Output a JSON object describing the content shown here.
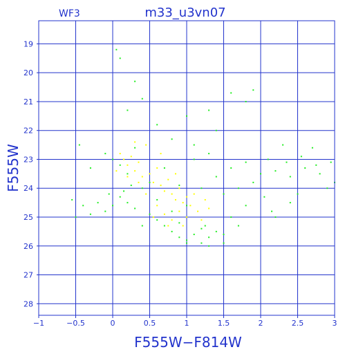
{
  "chart_data": {
    "type": "scatter",
    "title": "m33_u3vn07",
    "subtitle": "WF3",
    "xlabel": "F555W−F814W",
    "ylabel": "F555W",
    "xlim": [
      -1,
      3
    ],
    "ylim": [
      28.4,
      18.2
    ],
    "y_inverted": true,
    "x_ticks": [
      -1,
      -0.5,
      0,
      0.5,
      1,
      1.5,
      2,
      2.5,
      3
    ],
    "x_tick_labels": [
      "−1",
      "−0.5",
      "0",
      "0.5",
      "1",
      "1.5",
      "2",
      "2.5",
      "3"
    ],
    "y_ticks": [
      19,
      20,
      21,
      22,
      23,
      24,
      25,
      26,
      27,
      28
    ],
    "y_tick_labels": [
      "19",
      "20",
      "21",
      "22",
      "23",
      "24",
      "25",
      "26",
      "27",
      "28"
    ],
    "grid": true,
    "colors": {
      "axes": "#2233cc",
      "grid": "#2233cc",
      "green_series": "#22ee22",
      "yellow_series": "#ffff00"
    },
    "series": [
      {
        "color": "#22ee22",
        "points": [
          [
            0.9,
            25.2
          ],
          [
            1.1,
            25.6
          ],
          [
            1.2,
            25.4
          ],
          [
            0.8,
            25.5
          ],
          [
            1.0,
            25.8
          ],
          [
            1.3,
            25.7
          ],
          [
            1.4,
            25.5
          ],
          [
            0.7,
            25.3
          ],
          [
            0.6,
            25.1
          ],
          [
            0.5,
            24.9
          ],
          [
            0.3,
            24.7
          ],
          [
            0.2,
            24.5
          ],
          [
            0.1,
            24.3
          ],
          [
            0.0,
            24.6
          ],
          [
            -0.1,
            24.8
          ],
          [
            -0.2,
            24.5
          ],
          [
            -0.3,
            24.9
          ],
          [
            -0.4,
            24.6
          ],
          [
            0.2,
            23.5
          ],
          [
            0.1,
            23.2
          ],
          [
            0.0,
            23.0
          ],
          [
            -0.1,
            22.8
          ],
          [
            0.3,
            22.6
          ],
          [
            0.5,
            23.8
          ],
          [
            1.5,
            24.2
          ],
          [
            1.7,
            24.0
          ],
          [
            1.9,
            23.8
          ],
          [
            2.0,
            23.5
          ],
          [
            2.2,
            23.4
          ],
          [
            2.4,
            23.6
          ],
          [
            2.6,
            23.3
          ],
          [
            2.8,
            23.5
          ],
          [
            2.9,
            24.0
          ],
          [
            1.8,
            24.6
          ],
          [
            1.6,
            25.0
          ],
          [
            1.3,
            26.0
          ],
          [
            1.2,
            25.9
          ],
          [
            1.0,
            25.9
          ],
          [
            0.9,
            25.7
          ],
          [
            0.4,
            25.3
          ],
          [
            0.05,
            19.2
          ],
          [
            0.1,
            19.5
          ],
          [
            0.3,
            20.3
          ],
          [
            0.4,
            20.9
          ],
          [
            0.2,
            21.3
          ],
          [
            0.6,
            21.8
          ],
          [
            1.0,
            21.5
          ],
          [
            1.3,
            21.3
          ],
          [
            1.6,
            20.7
          ],
          [
            1.8,
            21.0
          ],
          [
            1.9,
            20.6
          ],
          [
            1.4,
            22.0
          ],
          [
            0.8,
            22.3
          ],
          [
            1.1,
            22.5
          ],
          [
            2.3,
            22.5
          ],
          [
            2.7,
            22.6
          ],
          [
            3.0,
            23.8
          ],
          [
            2.5,
            24.2
          ],
          [
            2.2,
            25.0
          ],
          [
            1.5,
            25.9
          ],
          [
            1.5,
            25.6
          ],
          [
            -0.5,
            25.0
          ],
          [
            -0.55,
            24.4
          ],
          [
            -0.3,
            23.3
          ],
          [
            -0.45,
            22.5
          ],
          [
            0.8,
            24.8
          ],
          [
            1.0,
            24.6
          ],
          [
            0.6,
            24.4
          ],
          [
            0.4,
            24.0
          ],
          [
            1.2,
            24.0
          ],
          [
            1.4,
            23.6
          ],
          [
            1.6,
            23.3
          ],
          [
            0.9,
            23.9
          ],
          [
            0.7,
            23.3
          ],
          [
            1.1,
            23.0
          ],
          [
            1.3,
            22.8
          ],
          [
            0.25,
            23.9
          ],
          [
            0.15,
            24.1
          ],
          [
            -0.05,
            24.2
          ],
          [
            1.8,
            23.1
          ],
          [
            2.1,
            23.0
          ],
          [
            2.35,
            23.1
          ],
          [
            2.55,
            22.9
          ],
          [
            2.75,
            23.2
          ],
          [
            2.95,
            23.1
          ],
          [
            2.05,
            24.3
          ],
          [
            2.15,
            24.8
          ],
          [
            2.4,
            24.5
          ],
          [
            1.7,
            25.3
          ],
          [
            1.25,
            25.3
          ]
        ]
      },
      {
        "color": "#ffff00",
        "points": [
          [
            0.1,
            22.8
          ],
          [
            0.15,
            23.0
          ],
          [
            0.2,
            23.2
          ],
          [
            0.25,
            22.9
          ],
          [
            0.3,
            23.4
          ],
          [
            0.35,
            23.1
          ],
          [
            0.4,
            23.6
          ],
          [
            0.5,
            23.5
          ],
          [
            0.55,
            23.8
          ],
          [
            0.6,
            23.3
          ],
          [
            0.65,
            23.9
          ],
          [
            0.7,
            24.1
          ],
          [
            0.75,
            23.7
          ],
          [
            0.8,
            24.2
          ],
          [
            0.85,
            24.4
          ],
          [
            0.9,
            24.0
          ],
          [
            0.95,
            24.5
          ],
          [
            1.0,
            24.3
          ],
          [
            1.05,
            24.6
          ],
          [
            1.1,
            24.2
          ],
          [
            0.9,
            24.8
          ],
          [
            1.0,
            25.0
          ],
          [
            0.8,
            25.1
          ],
          [
            0.7,
            24.9
          ],
          [
            0.6,
            24.6
          ],
          [
            0.45,
            24.2
          ],
          [
            0.35,
            23.8
          ],
          [
            0.2,
            23.6
          ],
          [
            0.05,
            23.4
          ],
          [
            1.15,
            24.8
          ],
          [
            1.2,
            25.1
          ],
          [
            0.95,
            25.3
          ],
          [
            0.75,
            25.3
          ],
          [
            0.55,
            25.0
          ],
          [
            1.3,
            24.7
          ],
          [
            1.25,
            24.4
          ],
          [
            0.85,
            23.5
          ],
          [
            0.65,
            22.8
          ],
          [
            0.45,
            22.5
          ],
          [
            0.3,
            22.4
          ]
        ]
      }
    ]
  }
}
